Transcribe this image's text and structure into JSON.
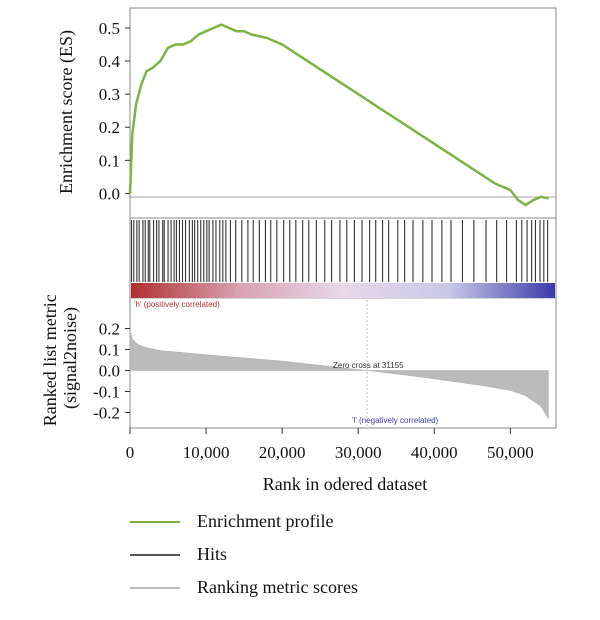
{
  "chart_data": {
    "type": "line",
    "es_panel": {
      "ylabel": "Enrichment score (ES)",
      "yticks": [
        "0.5",
        "0.4",
        "0.3",
        "0.2",
        "0.1",
        "0.0"
      ],
      "ylim": [
        -0.05,
        0.53
      ],
      "series": [
        {
          "name": "Enrichment profile",
          "color": "#7cb342",
          "x": [
            0,
            300,
            800,
            1500,
            2200,
            3000,
            4000,
            5000,
            6000,
            7000,
            8000,
            9000,
            10000,
            11000,
            12000,
            13000,
            14000,
            15000,
            16000,
            17000,
            18000,
            20000,
            22000,
            24000,
            26000,
            28000,
            30000,
            32000,
            34000,
            36000,
            38000,
            40000,
            42000,
            44000,
            46000,
            48000,
            50000,
            51000,
            52000,
            53000,
            54000,
            55000
          ],
          "y": [
            0.0,
            0.18,
            0.27,
            0.33,
            0.37,
            0.38,
            0.4,
            0.44,
            0.45,
            0.45,
            0.46,
            0.48,
            0.49,
            0.5,
            0.51,
            0.5,
            0.49,
            0.49,
            0.48,
            0.475,
            0.47,
            0.45,
            0.42,
            0.39,
            0.36,
            0.33,
            0.3,
            0.27,
            0.24,
            0.21,
            0.18,
            0.15,
            0.12,
            0.09,
            0.06,
            0.03,
            0.01,
            -0.02,
            -0.035,
            -0.02,
            -0.01,
            -0.015
          ]
        }
      ]
    },
    "hits_panel": {
      "name": "Hits",
      "color": "#333333",
      "positions": [
        200,
        500,
        900,
        1200,
        1700,
        2000,
        2400,
        2600,
        3100,
        3500,
        3800,
        4300,
        4500,
        5000,
        5400,
        5800,
        6100,
        6500,
        6900,
        7300,
        7800,
        8200,
        8500,
        8900,
        9300,
        9700,
        10100,
        10400,
        10900,
        11300,
        11800,
        12200,
        12600,
        13200,
        13900,
        14700,
        15500,
        16200,
        17000,
        17800,
        18500,
        19300,
        20200,
        21000,
        21800,
        22700,
        23500,
        24500,
        25600,
        26500,
        27600,
        28500,
        29500,
        30500,
        31500,
        32300,
        33200,
        34000,
        35200,
        36100,
        37200,
        38500,
        39700,
        41000,
        42200,
        43700,
        45200,
        46800,
        48200,
        49500,
        50800,
        51500,
        52200,
        52800,
        53300,
        53900,
        54400,
        54900
      ],
      "gradient_pos_label": "'h' (positively correlated)",
      "gradient_neg_label": "'l' (negatively correlated)",
      "gradient_colors": [
        "#b03030",
        "#d8a0b0",
        "#e8d8e8",
        "#c8c8e8",
        "#3a3aa8"
      ]
    },
    "metric_panel": {
      "name": "Ranking metric scores",
      "color": "#bbbbbb",
      "ylabel": "Ranked list metric (signal2noise)",
      "yticks": [
        "0.2",
        "0.1",
        "0.0",
        "-0.1",
        "-0.2"
      ],
      "ylim": [
        -0.25,
        0.25
      ],
      "zero_cross_label": "Zero cross at 31155",
      "zero_cross": 31155,
      "x": [
        0,
        300,
        1000,
        2000,
        4000,
        7000,
        10000,
        15000,
        20000,
        25000,
        28000,
        31155,
        34000,
        38000,
        42000,
        46000,
        50000,
        52000,
        54000,
        55000
      ],
      "y": [
        0.19,
        0.15,
        0.125,
        0.11,
        0.095,
        0.085,
        0.075,
        0.06,
        0.045,
        0.025,
        0.012,
        0.0,
        -0.012,
        -0.03,
        -0.05,
        -0.07,
        -0.095,
        -0.12,
        -0.17,
        -0.23
      ]
    },
    "xaxis": {
      "xlabel": "Rank in odered dataset",
      "xticks": [
        "0",
        "10,000",
        "20,000",
        "30,000",
        "40,000",
        "50,000"
      ],
      "xlim": [
        0,
        56000
      ]
    },
    "legend": [
      {
        "label": "Enrichment profile",
        "color": "#7cb342"
      },
      {
        "label": "Hits",
        "color": "#555555"
      },
      {
        "label": "Ranking metric scores",
        "color": "#bbbbbb"
      }
    ]
  }
}
